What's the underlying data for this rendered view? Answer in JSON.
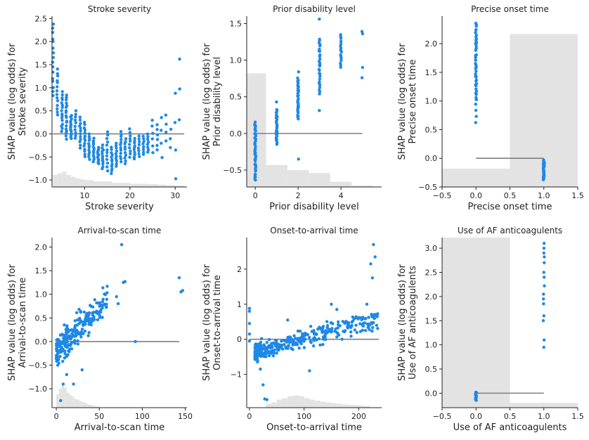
{
  "chart_data": [
    {
      "type": "scatter",
      "title": "Stroke severity",
      "xlabel": "Stroke severity",
      "ylabel": [
        "SHAP value (log odds) for",
        "Stroke severity"
      ],
      "xlim": [
        2.8,
        32.6
      ],
      "ylim": [
        -1.15,
        2.55
      ],
      "xticks": [
        10,
        20,
        30
      ],
      "xticklabels": [
        "10",
        "20",
        "30"
      ],
      "yticks": [
        -1.0,
        -0.5,
        0.0,
        0.5,
        1.0,
        1.5,
        2.0,
        2.5
      ],
      "yticklabels": [
        "−1.0",
        "−0.5",
        "0.0",
        "0.5",
        "1.0",
        "1.5",
        "2.0",
        "2.5"
      ],
      "hline": {
        "y": 0,
        "x": [
          3,
          32
        ]
      },
      "hist_base": -1.15,
      "hist": [
        [
          3,
          4,
          -0.89
        ],
        [
          4,
          5,
          -0.86
        ],
        [
          5,
          6,
          -0.82
        ],
        [
          6,
          7,
          -0.89
        ],
        [
          7,
          8,
          -0.93
        ],
        [
          8,
          9,
          -0.96
        ],
        [
          9,
          10,
          -0.98
        ],
        [
          10,
          12,
          -1.0
        ],
        [
          12,
          14,
          -1.03
        ],
        [
          14,
          16,
          -1.03
        ],
        [
          16,
          18,
          -1.06
        ],
        [
          18,
          20,
          -1.06
        ],
        [
          20,
          22,
          -1.08
        ],
        [
          22,
          24,
          -1.08
        ],
        [
          24,
          26,
          -1.09
        ],
        [
          26,
          28,
          -1.1
        ],
        [
          28,
          30,
          -1.11
        ],
        [
          30,
          32,
          -1.12
        ]
      ],
      "clusters": [
        {
          "x": 3,
          "n": 16,
          "lo": 0.8,
          "hi": 2.4
        },
        {
          "x": 4,
          "n": 14,
          "lo": 0.4,
          "hi": 1.4
        },
        {
          "x": 5,
          "n": 16,
          "lo": 0.05,
          "hi": 0.9
        },
        {
          "x": 6,
          "n": 18,
          "lo": -0.1,
          "hi": 0.85
        },
        {
          "x": 7,
          "n": 14,
          "lo": -0.1,
          "hi": 0.4
        },
        {
          "x": 8,
          "n": 10,
          "lo": -0.1,
          "hi": 0.5
        },
        {
          "x": 9,
          "n": 12,
          "lo": -0.3,
          "hi": 0.35
        },
        {
          "x": 10,
          "n": 14,
          "lo": -0.5,
          "hi": 0.25
        },
        {
          "x": 11,
          "n": 12,
          "lo": -0.55,
          "hi": 0.0
        },
        {
          "x": 12,
          "n": 12,
          "lo": -0.6,
          "hi": -0.1
        },
        {
          "x": 13,
          "n": 12,
          "lo": -0.65,
          "hi": -0.3
        },
        {
          "x": 14,
          "n": 12,
          "lo": -0.75,
          "hi": -0.25
        },
        {
          "x": 15,
          "n": 12,
          "lo": -0.8,
          "hi": 0.05
        },
        {
          "x": 16,
          "n": 12,
          "lo": -0.85,
          "hi": -0.3
        },
        {
          "x": 17,
          "n": 10,
          "lo": -0.7,
          "hi": -0.2
        },
        {
          "x": 18,
          "n": 12,
          "lo": -0.6,
          "hi": 0.05
        },
        {
          "x": 19,
          "n": 10,
          "lo": -0.65,
          "hi": -0.1
        },
        {
          "x": 20,
          "n": 10,
          "lo": -0.5,
          "hi": 0.1
        },
        {
          "x": 21,
          "n": 10,
          "lo": -0.55,
          "hi": -0.1
        },
        {
          "x": 22,
          "n": 8,
          "lo": -0.5,
          "hi": -0.05
        },
        {
          "x": 23,
          "n": 8,
          "lo": -0.45,
          "hi": -0.05
        },
        {
          "x": 24,
          "n": 8,
          "lo": -0.4,
          "hi": 0.0
        },
        {
          "x": 25,
          "n": 6,
          "lo": -0.4,
          "hi": 0.3
        },
        {
          "x": 26,
          "n": 6,
          "lo": -0.35,
          "hi": 0.2
        },
        {
          "x": 27,
          "n": 4,
          "lo": -0.5,
          "hi": 0.35
        },
        {
          "x": 28,
          "n": 4,
          "lo": -0.15,
          "hi": 0.4
        },
        {
          "x": 29,
          "n": 3,
          "lo": -0.3,
          "hi": 0.1
        },
        {
          "x": 30,
          "n": 4,
          "lo": -0.95,
          "hi": 0.85
        },
        {
          "x": 31,
          "n": 3,
          "lo": 0.3,
          "hi": 1.6
        }
      ]
    },
    {
      "type": "scatter",
      "title": "Prior disability level",
      "xlabel": "Prior disability level",
      "ylabel": [
        "SHAP value (log odds) for",
        "Prior disability level"
      ],
      "xlim": [
        -0.4,
        5.9
      ],
      "ylim": [
        -0.73,
        1.6
      ],
      "xticks": [
        0,
        2,
        4
      ],
      "xticklabels": [
        "0",
        "2",
        "4"
      ],
      "yticks": [
        -0.5,
        0.0,
        0.5,
        1.0,
        1.5
      ],
      "yticklabels": [
        "−0.5",
        "0.0",
        "0.5",
        "1.0",
        "1.5"
      ],
      "hline": {
        "y": 0,
        "x": [
          0,
          5
        ]
      },
      "hist_base": -0.73,
      "hist": [
        [
          -0.5,
          0.5,
          0.82
        ],
        [
          0.5,
          1.5,
          -0.43
        ],
        [
          1.5,
          2.5,
          -0.5
        ],
        [
          2.5,
          3.5,
          -0.54
        ],
        [
          3.5,
          4.5,
          -0.66
        ],
        [
          4.5,
          5.5,
          -0.71
        ]
      ],
      "clusters": [
        {
          "x": 0,
          "n": 40,
          "lo": -0.65,
          "hi": 0.15
        },
        {
          "x": 1,
          "n": 30,
          "lo": -0.15,
          "hi": 0.32
        },
        {
          "x": 1,
          "n": 1,
          "lo": 0.43,
          "hi": 0.43
        },
        {
          "x": 2,
          "n": 30,
          "lo": 0.2,
          "hi": 0.75
        },
        {
          "x": 2,
          "n": 1,
          "lo": 0.84,
          "hi": 0.84
        },
        {
          "x": 2,
          "n": 1,
          "lo": -0.35,
          "hi": -0.35
        },
        {
          "x": 3,
          "n": 28,
          "lo": 0.55,
          "hi": 1.3
        },
        {
          "x": 3,
          "n": 3,
          "lo": 0.32,
          "hi": 1.55
        },
        {
          "x": 4,
          "n": 16,
          "lo": 0.9,
          "hi": 1.35
        },
        {
          "x": 5,
          "n": 2,
          "lo": 1.36,
          "hi": 1.39
        },
        {
          "x": 5,
          "n": 1,
          "lo": 0.9,
          "hi": 0.9
        },
        {
          "x": 5,
          "n": 1,
          "lo": 0.76,
          "hi": 0.76
        }
      ]
    },
    {
      "type": "scatter",
      "title": "Precise onset time",
      "xlabel": "Precise onset time",
      "ylabel": [
        "SHAP value (log odds) for",
        "Precise onset time"
      ],
      "xlim": [
        -0.5,
        1.5
      ],
      "ylim": [
        -0.5,
        2.48
      ],
      "xticks": [
        -0.5,
        0.0,
        0.5,
        1.0,
        1.5
      ],
      "xticklabels": [
        "−0.5",
        "0.0",
        "0.5",
        "1.0",
        "1.5"
      ],
      "yticks": [
        -0.5,
        0.0,
        0.5,
        1.0,
        1.5,
        2.0
      ],
      "yticklabels": [
        "−0.5",
        "0.0",
        "0.5",
        "1.0",
        "1.5",
        "2.0"
      ],
      "hline": {
        "y": 0,
        "x": [
          0,
          1
        ]
      },
      "hist_base": -0.5,
      "hist": [
        [
          -0.5,
          0.5,
          -0.18
        ],
        [
          0.5,
          1.5,
          2.17
        ]
      ],
      "clusters": [
        {
          "x": 0,
          "n": 45,
          "lo": 1.0,
          "hi": 2.35
        },
        {
          "x": 0,
          "n": 4,
          "lo": 0.62,
          "hi": 0.95
        },
        {
          "x": 1,
          "n": 30,
          "lo": -0.37,
          "hi": -0.03
        }
      ]
    },
    {
      "type": "scatter",
      "title": "Arrival-to-scan time",
      "xlabel": "Arrival-to-scan time",
      "ylabel": [
        "SHAP value (log odds) for",
        "Arrival-to-scan time"
      ],
      "xlim": [
        -5,
        152
      ],
      "ylim": [
        -1.4,
        2.2
      ],
      "xticks": [
        0,
        50,
        100,
        150
      ],
      "xticklabels": [
        "0",
        "50",
        "100",
        "150"
      ],
      "yticks": [
        -1.0,
        -0.5,
        0.0,
        0.5,
        1.0,
        1.5,
        2.0
      ],
      "yticklabels": [
        "−1.0",
        "−0.5",
        "0.0",
        "0.5",
        "1.0",
        "1.5",
        "2.0"
      ],
      "hline": {
        "y": 0,
        "x": [
          0,
          143
        ]
      },
      "hist_base": -1.4,
      "hist": [
        [
          0,
          3,
          -1.12
        ],
        [
          3,
          6,
          -1.0
        ],
        [
          6,
          9,
          -0.92
        ],
        [
          9,
          12,
          -0.98
        ],
        [
          12,
          15,
          -1.08
        ],
        [
          15,
          18,
          -1.13
        ],
        [
          18,
          21,
          -1.17
        ],
        [
          21,
          24,
          -1.22
        ],
        [
          24,
          27,
          -1.23
        ],
        [
          27,
          30,
          -1.26
        ],
        [
          30,
          33,
          -1.28
        ],
        [
          33,
          36,
          -1.3
        ],
        [
          36,
          39,
          -1.33
        ],
        [
          39,
          42,
          -1.34
        ],
        [
          42,
          45,
          -1.36
        ],
        [
          45,
          48,
          -1.37
        ],
        [
          48,
          51,
          -1.38
        ]
      ],
      "points": [
        [
          92,
          0.0
        ],
        [
          76,
          2.05
        ],
        [
          143,
          1.35
        ],
        [
          145,
          1.05
        ],
        [
          147,
          1.08
        ],
        [
          78,
          1.25
        ],
        [
          80,
          1.27
        ],
        [
          70,
          0.95
        ],
        [
          72,
          0.8
        ],
        [
          5,
          -1.25
        ],
        [
          8,
          -0.9
        ],
        [
          20,
          -0.9
        ],
        [
          30,
          -0.6
        ],
        [
          12,
          -0.7
        ]
      ],
      "trend": {
        "x0": 0,
        "x1": 60,
        "n": 240,
        "a": -0.22,
        "b": 0.019,
        "spread": 0.28
      }
    },
    {
      "type": "scatter",
      "title": "Onset-to-arrival time",
      "xlabel": "Onset-to-arrival time",
      "ylabel": [
        "SHAP value (log odds) for",
        "Onset-to-arrival time"
      ],
      "xlim": [
        -5,
        242
      ],
      "ylim": [
        -1.95,
        2.9
      ],
      "xticks": [
        0,
        100,
        200
      ],
      "xticklabels": [
        "0",
        "100",
        "200"
      ],
      "yticks": [
        -1,
        0,
        1,
        2
      ],
      "yticklabels": [
        "−1",
        "0",
        "1",
        "2"
      ],
      "hline": {
        "y": 0,
        "x": [
          0,
          237
        ]
      },
      "hist_base": -1.95,
      "hist": [
        [
          30,
          40,
          -1.85
        ],
        [
          40,
          50,
          -1.8
        ],
        [
          50,
          60,
          -1.72
        ],
        [
          60,
          70,
          -1.68
        ],
        [
          70,
          80,
          -1.62
        ],
        [
          80,
          90,
          -1.6
        ],
        [
          90,
          100,
          -1.62
        ],
        [
          100,
          110,
          -1.68
        ],
        [
          110,
          120,
          -1.72
        ],
        [
          120,
          130,
          -1.75
        ],
        [
          130,
          140,
          -1.78
        ],
        [
          140,
          150,
          -1.8
        ],
        [
          150,
          160,
          -1.82
        ],
        [
          160,
          170,
          -1.84
        ],
        [
          170,
          180,
          -1.86
        ],
        [
          180,
          190,
          -1.87
        ],
        [
          190,
          200,
          -1.88
        ],
        [
          200,
          210,
          -1.89
        ],
        [
          210,
          220,
          -1.9
        ]
      ],
      "points": [
        [
          0,
          0.88
        ],
        [
          0,
          0.8
        ],
        [
          0,
          0.45
        ],
        [
          0,
          0.15
        ],
        [
          0,
          -0.05
        ],
        [
          227,
          2.7
        ],
        [
          230,
          2.35
        ],
        [
          222,
          2.15
        ],
        [
          225,
          1.75
        ],
        [
          215,
          1.0
        ],
        [
          28,
          -1.7
        ],
        [
          32,
          -1.72
        ],
        [
          15,
          -0.6
        ],
        [
          20,
          -0.85
        ],
        [
          25,
          -1.3
        ],
        [
          40,
          -0.4
        ],
        [
          70,
          0.55
        ],
        [
          110,
          -0.9
        ],
        [
          150,
          1.0
        ],
        [
          160,
          0.85
        ]
      ],
      "trend": {
        "x0": 10,
        "x1": 235,
        "n": 330,
        "a": -0.4,
        "b": 0.0042,
        "spread": 0.22
      }
    },
    {
      "type": "scatter",
      "title": "Use of AF anticoagulents",
      "xlabel": "Use of AF anticoagulents",
      "ylabel": [
        "SHAP value (log odds) for",
        "Use of AF anticoagulents"
      ],
      "xlim": [
        -0.5,
        1.5
      ],
      "ylim": [
        -0.3,
        3.22
      ],
      "xticks": [
        -0.5,
        0.0,
        0.5,
        1.0,
        1.5
      ],
      "xticklabels": [
        "−0.5",
        "0.0",
        "0.5",
        "1.0",
        "1.5"
      ],
      "yticks": [
        0.0,
        0.5,
        1.0,
        1.5,
        2.0,
        2.5,
        3.0
      ],
      "yticklabels": [
        "0.0",
        "0.5",
        "1.0",
        "1.5",
        "2.0",
        "2.5",
        "3.0"
      ],
      "hline": {
        "y": 0,
        "x": [
          0,
          1
        ]
      },
      "hist_base": -0.3,
      "hist": [
        [
          -0.5,
          0.5,
          3.22
        ],
        [
          0.5,
          1.5,
          -0.2
        ]
      ],
      "clusters": [
        {
          "x": 0,
          "n": 20,
          "lo": -0.15,
          "hi": 0.02
        },
        {
          "x": 1,
          "n": 1,
          "lo": 3.1,
          "hi": 3.1
        },
        {
          "x": 1,
          "n": 1,
          "lo": 3.0,
          "hi": 3.0
        },
        {
          "x": 1,
          "n": 1,
          "lo": 2.9,
          "hi": 2.9
        },
        {
          "x": 1,
          "n": 1,
          "lo": 2.82,
          "hi": 2.82
        },
        {
          "x": 1,
          "n": 1,
          "lo": 2.7,
          "hi": 2.7
        },
        {
          "x": 1,
          "n": 1,
          "lo": 2.5,
          "hi": 2.5
        },
        {
          "x": 1,
          "n": 1,
          "lo": 2.4,
          "hi": 2.4
        },
        {
          "x": 1,
          "n": 1,
          "lo": 2.22,
          "hi": 2.22
        },
        {
          "x": 1,
          "n": 1,
          "lo": 2.05,
          "hi": 2.05
        },
        {
          "x": 1,
          "n": 1,
          "lo": 1.95,
          "hi": 1.95
        },
        {
          "x": 1,
          "n": 1,
          "lo": 1.85,
          "hi": 1.85
        },
        {
          "x": 1,
          "n": 1,
          "lo": 1.6,
          "hi": 1.6
        },
        {
          "x": 1,
          "n": 1,
          "lo": 1.5,
          "hi": 1.5
        },
        {
          "x": 1,
          "n": 1,
          "lo": 1.1,
          "hi": 1.1
        },
        {
          "x": 1,
          "n": 1,
          "lo": 0.95,
          "hi": 0.95
        }
      ]
    }
  ]
}
